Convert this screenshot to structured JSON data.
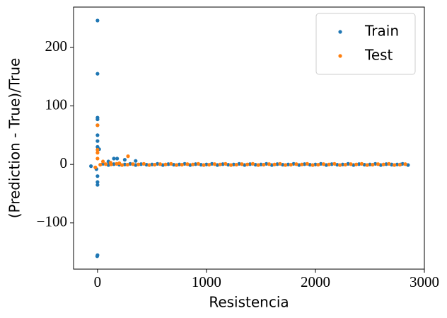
{
  "chart_data": {
    "type": "scatter",
    "x_label": "Resistencia",
    "y_label": "(Prediction - True)/True",
    "xlim": [
      -220,
      3000
    ],
    "ylim": [
      -179,
      269
    ],
    "xticks": [
      0,
      1000,
      2000,
      3000
    ],
    "yticks": [
      {
        "value": -100,
        "label": "−100"
      },
      0,
      100,
      200
    ],
    "legend": "upper right",
    "series": [
      {
        "name": "Train",
        "color": "#1f77b4",
        "x": [
          -60,
          -10,
          0,
          0,
          0,
          0,
          0,
          0,
          0,
          0,
          0,
          0,
          0,
          0,
          -3,
          5,
          15,
          100,
          150,
          180,
          250,
          350,
          2700,
          2780,
          50,
          100,
          150,
          200,
          250,
          300,
          350,
          400,
          450,
          500,
          550,
          600,
          650,
          700,
          750,
          800,
          850,
          900,
          950,
          1000,
          1050,
          1100,
          1150,
          1200,
          1250,
          1300,
          1350,
          1400,
          1450,
          1500,
          1550,
          1600,
          1650,
          1700,
          1750,
          1800,
          1850,
          1900,
          1950,
          2000,
          2050,
          2100,
          2150,
          2200,
          2250,
          2300,
          2350,
          2400,
          2450,
          2500,
          2550,
          2600,
          2650,
          2700,
          2750,
          2800,
          2850
        ],
        "values": [
          -3,
          -8,
          246,
          155,
          80,
          77,
          67,
          50,
          40,
          30,
          -20,
          -30,
          -35,
          -155,
          -157,
          27,
          26,
          5,
          10,
          10,
          8,
          6,
          0,
          0,
          1,
          -1,
          0.5,
          -0.5,
          0,
          1,
          -1,
          0.5,
          -0.5,
          0,
          1,
          -1,
          0.5,
          -0.5,
          0,
          1,
          -1,
          0.5,
          -0.5,
          0,
          1,
          -1,
          0.5,
          -0.5,
          0,
          1,
          -1,
          0.5,
          -0.5,
          0,
          1,
          -1,
          0.5,
          -0.5,
          0,
          1,
          -1,
          0.5,
          -0.5,
          0,
          1,
          -1,
          0.5,
          -0.5,
          0,
          1,
          -1,
          0.5,
          -0.5,
          0,
          1,
          -1,
          0.5,
          -0.5,
          0,
          1,
          -1
        ]
      },
      {
        "name": "Test",
        "color": "#ff7f0e",
        "x": [
          0,
          0,
          0,
          0,
          -20,
          280,
          50,
          120,
          200,
          25,
          75,
          125,
          175,
          225,
          275,
          325,
          375,
          425,
          475,
          525,
          575,
          625,
          675,
          725,
          775,
          825,
          875,
          925,
          975,
          1025,
          1075,
          1125,
          1175,
          1225,
          1275,
          1325,
          1375,
          1425,
          1475,
          1525,
          1575,
          1625,
          1675,
          1725,
          1775,
          1825,
          1875,
          1925,
          1975,
          2025,
          2075,
          2125,
          2175,
          2225,
          2275,
          2325,
          2375,
          2425,
          2475,
          2525,
          2575,
          2625,
          2675,
          2725,
          2775,
          2825
        ],
        "values": [
          67,
          25,
          20,
          10,
          -5,
          14,
          5,
          3,
          2,
          -0.5,
          0.5,
          0,
          1,
          -1,
          -0.5,
          0.5,
          0,
          1,
          -1,
          -0.5,
          0.5,
          0,
          1,
          -1,
          -0.5,
          0.5,
          0,
          1,
          -1,
          -0.5,
          0.5,
          0,
          1,
          -1,
          -0.5,
          0.5,
          0,
          1,
          -1,
          -0.5,
          0.5,
          0,
          1,
          -1,
          -0.5,
          0.5,
          0,
          1,
          -1,
          -0.5,
          0.5,
          0,
          1,
          -1,
          -0.5,
          0.5,
          0,
          1,
          -1,
          -0.5,
          0.5,
          0,
          1,
          -1,
          -0.5,
          0.5
        ]
      }
    ]
  }
}
